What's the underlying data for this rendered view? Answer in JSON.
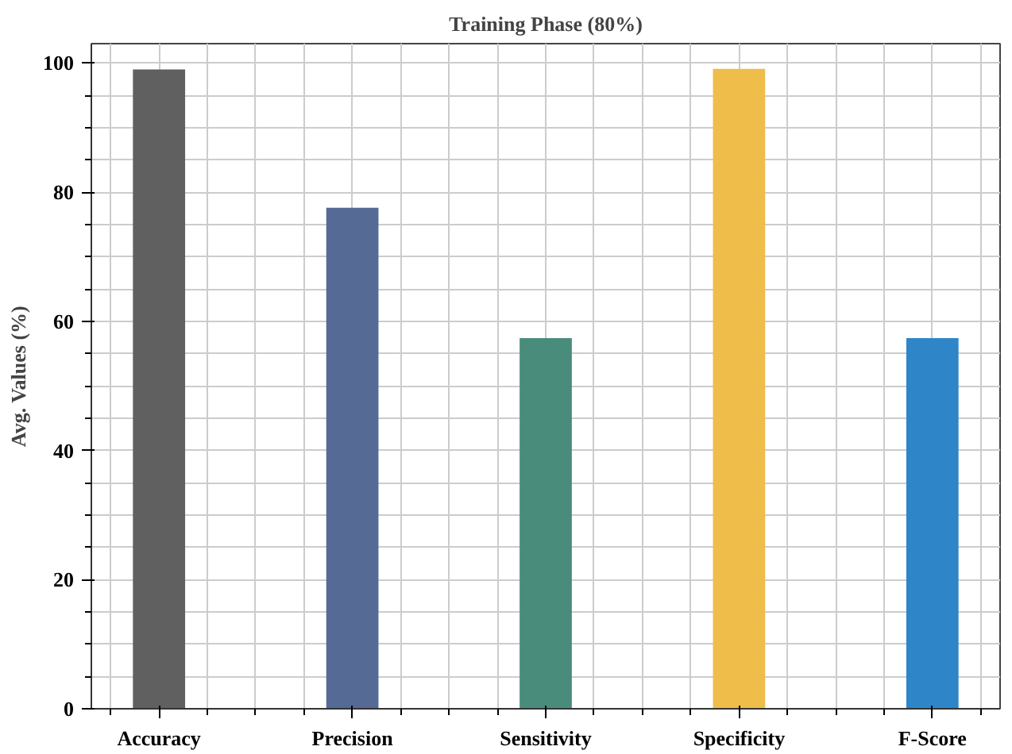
{
  "chart_data": {
    "type": "bar",
    "title": "Training Phase (80%)",
    "ylabel": "Avg. Values (%)",
    "categories": [
      "Accuracy",
      "Precision",
      "Sensitivity",
      "Specificity",
      "F-Score"
    ],
    "values": [
      99,
      77.6,
      57.4,
      99.1,
      57.4
    ],
    "colors": [
      "#606060",
      "#566a96",
      "#4a8c7c",
      "#eebd4a",
      "#2e86c8"
    ],
    "ylim": [
      0,
      103
    ],
    "yticks": [
      0,
      20,
      40,
      60,
      80,
      100
    ],
    "grid": true
  }
}
